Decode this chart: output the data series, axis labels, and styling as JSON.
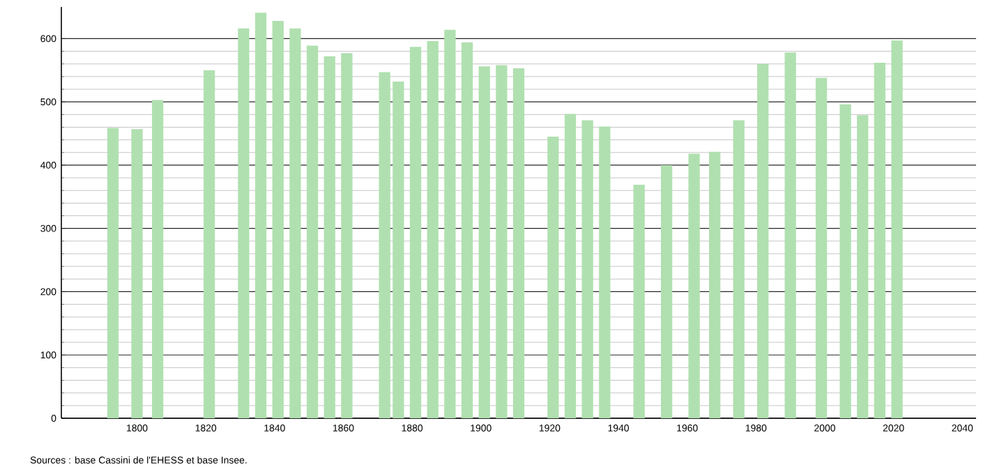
{
  "chart_data": {
    "type": "bar",
    "x": [
      1793,
      1800,
      1806,
      1821,
      1831,
      1836,
      1841,
      1846,
      1851,
      1856,
      1861,
      1872,
      1876,
      1881,
      1886,
      1891,
      1896,
      1901,
      1906,
      1911,
      1921,
      1926,
      1931,
      1936,
      1946,
      1954,
      1962,
      1968,
      1975,
      1982,
      1990,
      1999,
      2006,
      2011,
      2016,
      2021
    ],
    "values": [
      459,
      457,
      503,
      550,
      616,
      641,
      628,
      616,
      589,
      572,
      577,
      547,
      532,
      587,
      596,
      614,
      594,
      556,
      558,
      553,
      445,
      481,
      471,
      461,
      369,
      400,
      418,
      421,
      471,
      560,
      578,
      538,
      496,
      479,
      562,
      597
    ],
    "color": "#b0e0b0",
    "xlim": [
      1778,
      2044
    ],
    "ylim": [
      0,
      650
    ],
    "xticks": [
      1800,
      1820,
      1840,
      1860,
      1880,
      1900,
      1920,
      1940,
      1960,
      1980,
      2000,
      2020,
      2040
    ],
    "yticks": [
      0,
      100,
      200,
      300,
      400,
      500,
      600
    ],
    "grid": "y",
    "annotations": [
      "Sources : base Cassini de l'EHESS et base Insee."
    ]
  }
}
